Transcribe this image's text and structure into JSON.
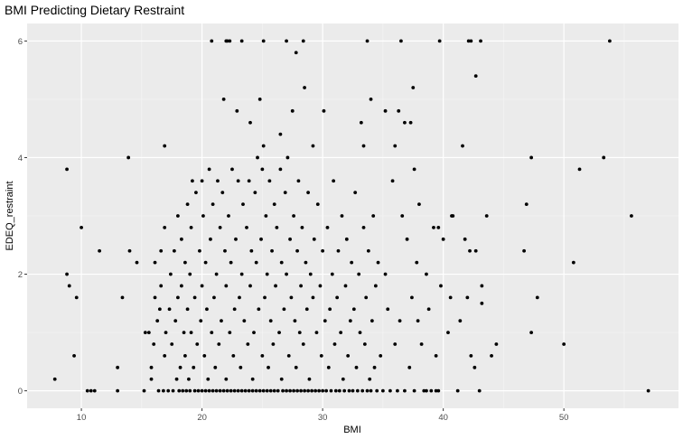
{
  "chart_data": {
    "type": "scatter",
    "title": "BMI Predicting Dietary Restraint",
    "xlabel": "BMI",
    "ylabel": "EDEQ_restraint",
    "xlim": [
      5.5,
      59.5
    ],
    "ylim": [
      -0.3,
      6.3
    ],
    "xticks": [
      10,
      20,
      30,
      40,
      50
    ],
    "yticks": [
      0,
      2,
      4,
      6
    ],
    "grid": true,
    "background": "#ebebeb",
    "point_color": "#000000",
    "points": [
      [
        7.8,
        0.2
      ],
      [
        8.8,
        3.8
      ],
      [
        8.8,
        2.0
      ],
      [
        9.0,
        1.8
      ],
      [
        9.6,
        1.6
      ],
      [
        9.4,
        0.6
      ],
      [
        10.0,
        2.8
      ],
      [
        10.5,
        0.0
      ],
      [
        10.8,
        0.0
      ],
      [
        11.1,
        0.0
      ],
      [
        11.5,
        2.4
      ],
      [
        13.0,
        0.0
      ],
      [
        13.0,
        0.4
      ],
      [
        13.4,
        1.6
      ],
      [
        13.9,
        4.0
      ],
      [
        14.0,
        2.4
      ],
      [
        14.6,
        2.2
      ],
      [
        15.2,
        0.0
      ],
      [
        15.3,
        1.0
      ],
      [
        15.6,
        1.0
      ],
      [
        15.8,
        0.4
      ],
      [
        15.8,
        0.2
      ],
      [
        16.0,
        0.8
      ],
      [
        16.1,
        1.6
      ],
      [
        16.1,
        2.2
      ],
      [
        16.3,
        1.2
      ],
      [
        16.4,
        0.0
      ],
      [
        16.5,
        1.4
      ],
      [
        16.6,
        2.4
      ],
      [
        16.6,
        1.8
      ],
      [
        16.8,
        0.0
      ],
      [
        16.9,
        0.6
      ],
      [
        16.9,
        2.8
      ],
      [
        16.9,
        4.2
      ],
      [
        17.0,
        1.0
      ],
      [
        17.2,
        0.0
      ],
      [
        17.3,
        1.4
      ],
      [
        17.4,
        2.0
      ],
      [
        17.5,
        0.8
      ],
      [
        17.6,
        0.0
      ],
      [
        17.7,
        2.4
      ],
      [
        17.8,
        1.2
      ],
      [
        17.9,
        0.2
      ],
      [
        18.0,
        1.6
      ],
      [
        18.0,
        3.0
      ],
      [
        18.1,
        0.0
      ],
      [
        18.2,
        0.4
      ],
      [
        18.3,
        1.8
      ],
      [
        18.3,
        2.6
      ],
      [
        18.4,
        0.0
      ],
      [
        18.5,
        1.0
      ],
      [
        18.6,
        0.6
      ],
      [
        18.6,
        2.2
      ],
      [
        18.7,
        0.0
      ],
      [
        18.8,
        1.4
      ],
      [
        18.8,
        3.2
      ],
      [
        18.9,
        0.2
      ],
      [
        19.0,
        0.0
      ],
      [
        19.0,
        2.0
      ],
      [
        19.1,
        1.0
      ],
      [
        19.1,
        2.8
      ],
      [
        19.2,
        3.6
      ],
      [
        19.3,
        0.4
      ],
      [
        19.4,
        0.0
      ],
      [
        19.4,
        1.6
      ],
      [
        19.5,
        3.4
      ],
      [
        19.6,
        0.8
      ],
      [
        19.7,
        0.0
      ],
      [
        19.8,
        2.4
      ],
      [
        19.9,
        1.2
      ],
      [
        20.0,
        0.0
      ],
      [
        20.0,
        1.8
      ],
      [
        20.0,
        3.6
      ],
      [
        20.1,
        3.0
      ],
      [
        20.2,
        0.6
      ],
      [
        20.3,
        0.0
      ],
      [
        20.3,
        2.2
      ],
      [
        20.4,
        1.4
      ],
      [
        20.5,
        0.2
      ],
      [
        20.6,
        0.0
      ],
      [
        20.6,
        3.8
      ],
      [
        20.7,
        2.6
      ],
      [
        20.8,
        1.0
      ],
      [
        20.9,
        0.0
      ],
      [
        20.9,
        3.2
      ],
      [
        21.0,
        1.6
      ],
      [
        21.1,
        0.4
      ],
      [
        21.2,
        0.0
      ],
      [
        21.2,
        2.0
      ],
      [
        21.3,
        3.6
      ],
      [
        21.4,
        0.8
      ],
      [
        21.5,
        0.0
      ],
      [
        21.5,
        2.8
      ],
      [
        21.6,
        1.2
      ],
      [
        21.7,
        3.4
      ],
      [
        21.8,
        0.0
      ],
      [
        21.8,
        5.0
      ],
      [
        21.9,
        2.4
      ],
      [
        22.0,
        0.2
      ],
      [
        22.0,
        1.8
      ],
      [
        22.1,
        0.0
      ],
      [
        22.1,
        6.0
      ],
      [
        22.2,
        3.0
      ],
      [
        22.3,
        1.0
      ],
      [
        22.4,
        0.0
      ],
      [
        22.4,
        2.2
      ],
      [
        22.5,
        3.8
      ],
      [
        22.6,
        0.6
      ],
      [
        22.7,
        0.0
      ],
      [
        22.7,
        1.4
      ],
      [
        22.8,
        2.6
      ],
      [
        22.9,
        4.8
      ],
      [
        23.0,
        0.0
      ],
      [
        23.0,
        3.6
      ],
      [
        23.1,
        1.6
      ],
      [
        23.2,
        0.4
      ],
      [
        23.3,
        0.0
      ],
      [
        23.3,
        2.0
      ],
      [
        23.4,
        3.2
      ],
      [
        23.5,
        1.2
      ],
      [
        23.6,
        0.0
      ],
      [
        23.7,
        2.8
      ],
      [
        23.8,
        0.8
      ],
      [
        23.9,
        0.0
      ],
      [
        23.9,
        3.6
      ],
      [
        24.0,
        1.8
      ],
      [
        24.0,
        4.6
      ],
      [
        24.1,
        2.4
      ],
      [
        24.2,
        0.0
      ],
      [
        24.2,
        0.2
      ],
      [
        24.3,
        1.0
      ],
      [
        24.4,
        3.4
      ],
      [
        24.5,
        0.0
      ],
      [
        24.5,
        2.2
      ],
      [
        24.6,
        4.0
      ],
      [
        24.7,
        1.4
      ],
      [
        24.8,
        0.0
      ],
      [
        24.8,
        5.0
      ],
      [
        24.9,
        2.6
      ],
      [
        25.0,
        0.6
      ],
      [
        25.0,
        3.8
      ],
      [
        25.1,
        0.0
      ],
      [
        25.1,
        4.2
      ],
      [
        25.2,
        1.6
      ],
      [
        25.3,
        3.0
      ],
      [
        25.4,
        0.0
      ],
      [
        25.4,
        2.0
      ],
      [
        25.5,
        0.4
      ],
      [
        25.6,
        3.6
      ],
      [
        25.7,
        0.0
      ],
      [
        25.7,
        1.2
      ],
      [
        25.8,
        2.4
      ],
      [
        25.9,
        0.8
      ],
      [
        26.0,
        0.0
      ],
      [
        26.0,
        3.2
      ],
      [
        26.1,
        1.8
      ],
      [
        26.2,
        2.8
      ],
      [
        26.3,
        0.0
      ],
      [
        26.4,
        1.0
      ],
      [
        26.5,
        3.8
      ],
      [
        26.5,
        4.4
      ],
      [
        26.6,
        0.2
      ],
      [
        26.6,
        2.2
      ],
      [
        26.7,
        0.0
      ],
      [
        26.8,
        1.4
      ],
      [
        26.9,
        3.4
      ],
      [
        27.0,
        0.0
      ],
      [
        27.0,
        2.0
      ],
      [
        27.1,
        4.0
      ],
      [
        27.2,
        0.6
      ],
      [
        27.3,
        0.0
      ],
      [
        27.3,
        2.6
      ],
      [
        27.4,
        1.6
      ],
      [
        27.5,
        4.8
      ],
      [
        27.6,
        0.0
      ],
      [
        27.6,
        3.0
      ],
      [
        27.7,
        1.2
      ],
      [
        27.8,
        0.4
      ],
      [
        27.9,
        0.0
      ],
      [
        27.9,
        2.4
      ],
      [
        28.0,
        3.6
      ],
      [
        28.1,
        1.0
      ],
      [
        28.2,
        0.0
      ],
      [
        28.2,
        1.8
      ],
      [
        28.3,
        2.8
      ],
      [
        28.4,
        0.8
      ],
      [
        28.5,
        0.0
      ],
      [
        28.5,
        5.2
      ],
      [
        28.6,
        2.2
      ],
      [
        28.7,
        1.4
      ],
      [
        28.8,
        0.0
      ],
      [
        28.8,
        3.4
      ],
      [
        28.9,
        0.2
      ],
      [
        29.0,
        2.0
      ],
      [
        29.1,
        0.0
      ],
      [
        29.2,
        1.6
      ],
      [
        29.2,
        4.2
      ],
      [
        29.3,
        2.6
      ],
      [
        29.4,
        0.0
      ],
      [
        29.5,
        1.0
      ],
      [
        29.6,
        3.2
      ],
      [
        29.7,
        0.0
      ],
      [
        29.8,
        1.8
      ],
      [
        29.9,
        0.6
      ],
      [
        30.0,
        0.0
      ],
      [
        30.0,
        2.4
      ],
      [
        30.1,
        4.8
      ],
      [
        30.2,
        1.2
      ],
      [
        30.3,
        0.0
      ],
      [
        30.4,
        2.8
      ],
      [
        30.5,
        0.4
      ],
      [
        30.6,
        1.4
      ],
      [
        30.7,
        0.0
      ],
      [
        30.8,
        2.0
      ],
      [
        30.9,
        3.6
      ],
      [
        31.0,
        0.8
      ],
      [
        31.1,
        0.0
      ],
      [
        31.2,
        1.6
      ],
      [
        31.3,
        2.4
      ],
      [
        31.4,
        0.0
      ],
      [
        31.5,
        1.0
      ],
      [
        31.6,
        3.0
      ],
      [
        31.7,
        0.2
      ],
      [
        31.8,
        0.0
      ],
      [
        31.9,
        1.8
      ],
      [
        32.0,
        2.6
      ],
      [
        32.1,
        0.6
      ],
      [
        32.2,
        0.0
      ],
      [
        32.3,
        1.2
      ],
      [
        32.4,
        2.2
      ],
      [
        32.5,
        0.0
      ],
      [
        32.6,
        1.4
      ],
      [
        32.7,
        3.4
      ],
      [
        32.8,
        0.4
      ],
      [
        32.9,
        0.0
      ],
      [
        33.0,
        2.0
      ],
      [
        33.1,
        1.0
      ],
      [
        33.2,
        4.6
      ],
      [
        33.3,
        0.0
      ],
      [
        33.4,
        2.8
      ],
      [
        33.5,
        0.8
      ],
      [
        33.6,
        1.6
      ],
      [
        33.7,
        0.0
      ],
      [
        33.8,
        2.4
      ],
      [
        33.9,
        0.2
      ],
      [
        34.0,
        0.0
      ],
      [
        34.0,
        5.0
      ],
      [
        34.1,
        1.2
      ],
      [
        34.2,
        3.0
      ],
      [
        34.3,
        0.4
      ],
      [
        34.4,
        1.8
      ],
      [
        34.5,
        0.0
      ],
      [
        34.6,
        2.2
      ],
      [
        34.8,
        0.6
      ],
      [
        35.0,
        0.0
      ],
      [
        35.2,
        2.0
      ],
      [
        35.4,
        1.4
      ],
      [
        35.6,
        0.0
      ],
      [
        35.8,
        3.6
      ],
      [
        36.0,
        0.8
      ],
      [
        36.2,
        0.0
      ],
      [
        36.4,
        1.2
      ],
      [
        36.6,
        3.0
      ],
      [
        36.8,
        0.0
      ],
      [
        37.0,
        2.6
      ],
      [
        37.2,
        0.4
      ],
      [
        37.4,
        1.6
      ],
      [
        37.6,
        0.0
      ],
      [
        37.8,
        2.2
      ],
      [
        38.0,
        3.2
      ],
      [
        38.2,
        0.8
      ],
      [
        38.4,
        0.0
      ],
      [
        38.6,
        2.0
      ],
      [
        38.8,
        1.4
      ],
      [
        39.0,
        0.0
      ],
      [
        39.2,
        2.8
      ],
      [
        39.4,
        0.6
      ],
      [
        39.6,
        0.0
      ],
      [
        39.8,
        1.8
      ],
      [
        40.0,
        2.6
      ],
      [
        40.4,
        1.0
      ],
      [
        40.8,
        3.0
      ],
      [
        41.2,
        0.0
      ],
      [
        41.6,
        4.2
      ],
      [
        42.0,
        1.6
      ],
      [
        42.2,
        2.4
      ],
      [
        42.6,
        0.4
      ],
      [
        43.0,
        0.0
      ],
      [
        43.2,
        1.8
      ],
      [
        43.6,
        3.0
      ],
      [
        44.0,
        0.6
      ],
      [
        44.4,
        0.8
      ],
      [
        22.0,
        6.0
      ],
      [
        20.8,
        6.0
      ],
      [
        22.3,
        6.0
      ],
      [
        23.3,
        6.0
      ],
      [
        25.1,
        6.0
      ],
      [
        27.0,
        6.0
      ],
      [
        27.8,
        5.8
      ],
      [
        28.4,
        6.0
      ],
      [
        33.7,
        6.0
      ],
      [
        36.5,
        6.0
      ],
      [
        39.7,
        6.0
      ],
      [
        42.1,
        6.0
      ],
      [
        42.3,
        6.0
      ],
      [
        43.1,
        6.0
      ],
      [
        53.8,
        6.0
      ],
      [
        42.7,
        5.4
      ],
      [
        37.5,
        5.2
      ],
      [
        33.4,
        4.2
      ],
      [
        35.2,
        4.8
      ],
      [
        36.3,
        4.8
      ],
      [
        36.8,
        4.6
      ],
      [
        37.3,
        4.6
      ],
      [
        36.0,
        4.2
      ],
      [
        37.6,
        3.8
      ],
      [
        39.6,
        2.8
      ],
      [
        40.7,
        3.0
      ],
      [
        41.8,
        2.6
      ],
      [
        42.7,
        2.4
      ],
      [
        41.4,
        1.2
      ],
      [
        40.6,
        1.6
      ],
      [
        42.3,
        0.6
      ],
      [
        43.2,
        1.5
      ],
      [
        39.4,
        0.0
      ],
      [
        37.9,
        1.2
      ],
      [
        38.6,
        0.0
      ],
      [
        47.3,
        4.0
      ],
      [
        46.9,
        3.2
      ],
      [
        46.7,
        2.4
      ],
      [
        47.3,
        1.0
      ],
      [
        47.8,
        1.6
      ],
      [
        50.8,
        2.2
      ],
      [
        51.3,
        3.8
      ],
      [
        53.3,
        4.0
      ],
      [
        55.6,
        3.0
      ],
      [
        50.0,
        0.8
      ],
      [
        57.0,
        0.0
      ]
    ]
  }
}
